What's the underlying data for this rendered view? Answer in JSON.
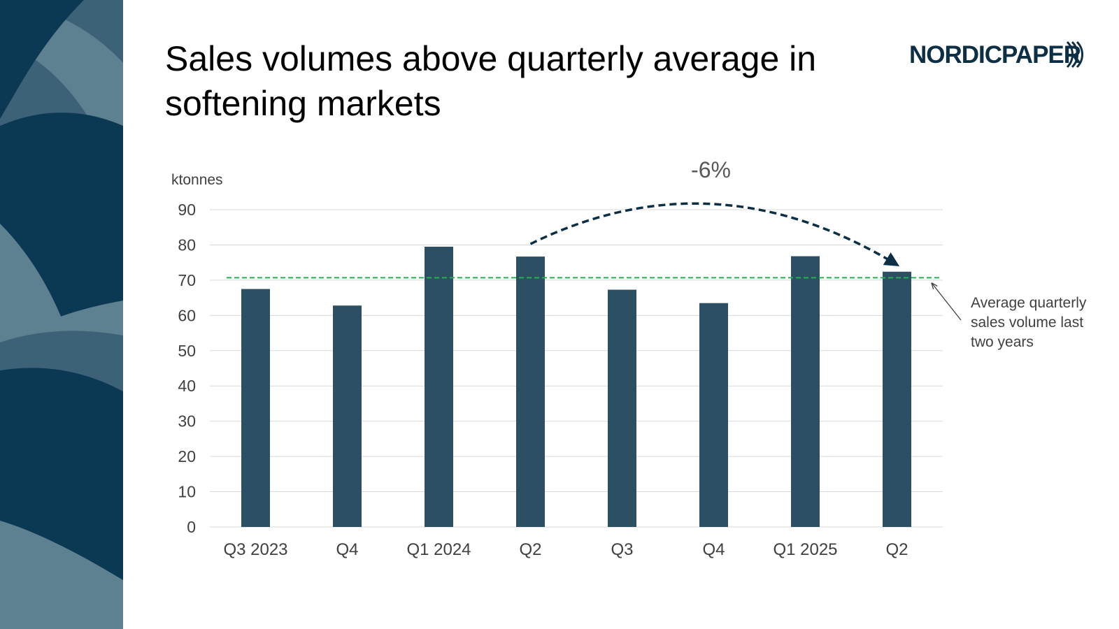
{
  "slide": {
    "title": "Sales volumes above quarterly average in softening markets",
    "logo_text": "NORDICPAPER"
  },
  "colors": {
    "bar": "#2c4f63",
    "average_line": "#22b14c",
    "panel_dark": "#0b3954",
    "panel_mid": "#3d6278",
    "panel_light": "#5e8191",
    "arrow": "#0d2f45",
    "gridline": "#d9d9d9"
  },
  "chart_data": {
    "type": "bar",
    "title": "",
    "ylabel": "ktonnes",
    "xlabel": "",
    "categories": [
      "Q3 2023",
      "Q4",
      "Q1 2024",
      "Q2",
      "Q3",
      "Q4",
      "Q1 2025",
      "Q2"
    ],
    "values": [
      67.5,
      62.8,
      79.5,
      76.7,
      67.3,
      63.5,
      76.8,
      72.4
    ],
    "ylim": [
      0,
      90
    ],
    "yticks": [
      0,
      10,
      20,
      30,
      40,
      50,
      60,
      70,
      80,
      90
    ],
    "grid": true,
    "average_line": {
      "value": 70.7,
      "label": "Average quarterly sales volume last two years",
      "label_lines": [
        "Average quarterly",
        "sales volume last",
        "two years"
      ]
    },
    "change_annotation": {
      "text": "-6%",
      "from_category_index": 3,
      "to_category_index": 7
    }
  }
}
